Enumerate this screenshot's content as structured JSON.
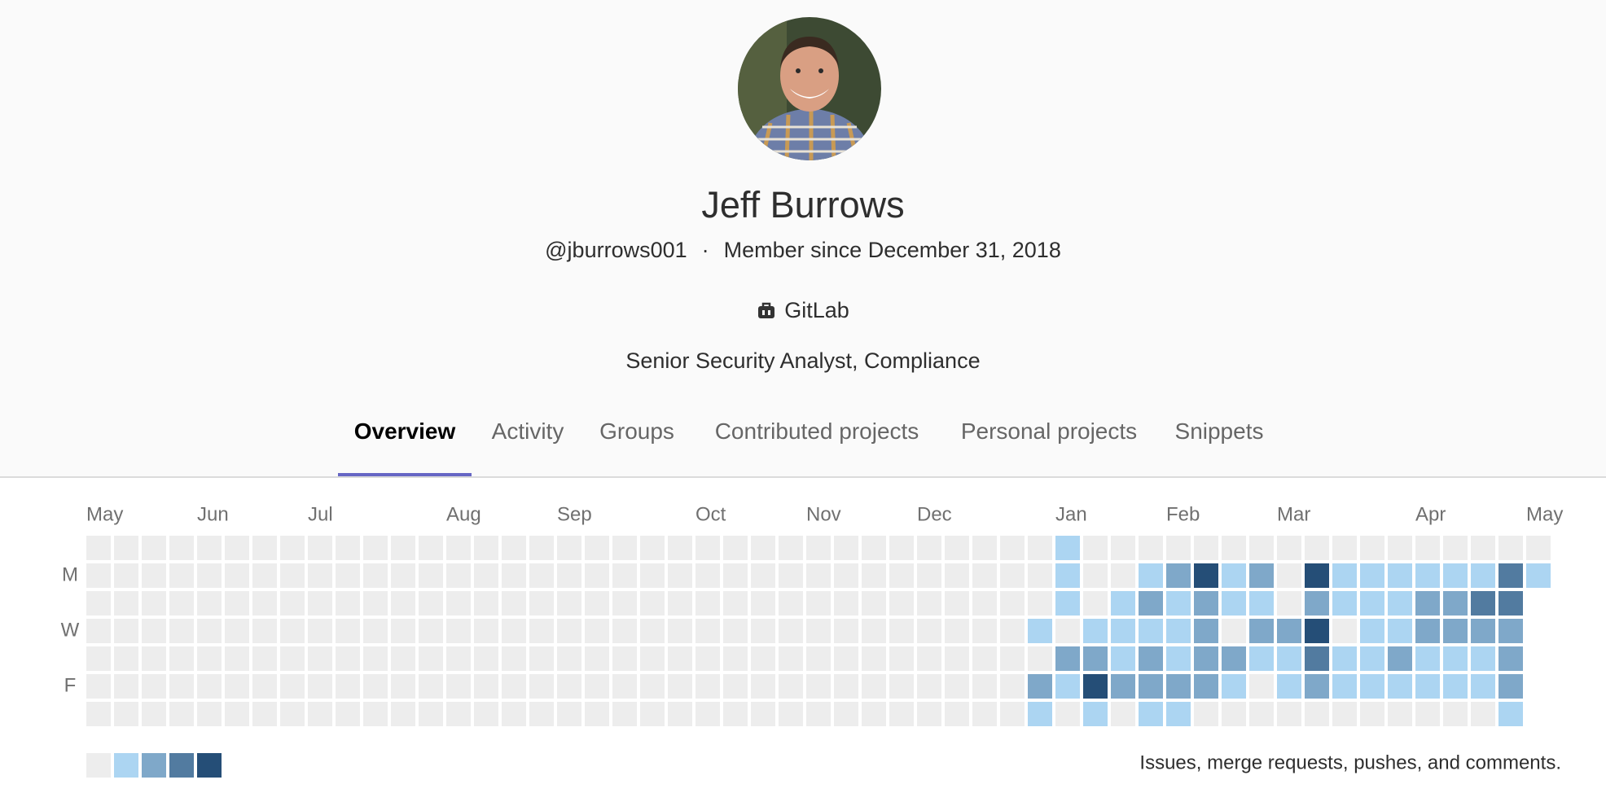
{
  "profile": {
    "name": "Jeff Burrows",
    "handle": "@jburrows001",
    "separator": "·",
    "member_since": "Member since December 31, 2018",
    "organization": "GitLab",
    "job_title": "Senior Security Analyst, Compliance"
  },
  "tabs": [
    "Overview",
    "Activity",
    "Groups",
    "Contributed projects",
    "Personal projects",
    "Snippets"
  ],
  "active_tab": 0,
  "calendar": {
    "week_labels": [
      "May",
      null,
      null,
      null,
      "Jun",
      null,
      null,
      null,
      "Jul",
      null,
      null,
      null,
      null,
      "Aug",
      null,
      null,
      null,
      "Sep",
      null,
      null,
      null,
      null,
      "Oct",
      null,
      null,
      null,
      "Nov",
      null,
      null,
      null,
      "Dec",
      null,
      null,
      null,
      null,
      "Jan",
      null,
      null,
      null,
      "Feb",
      null,
      null,
      null,
      "Mar",
      null,
      null,
      null,
      null,
      "Apr",
      null,
      null,
      null,
      "May"
    ],
    "day_labels": [
      null,
      "M",
      null,
      "W",
      null,
      "F",
      null
    ],
    "colors": [
      "#ededed",
      "#acd5f2",
      "#7fa8c9",
      "#527ba0",
      "#254e77"
    ],
    "weeks": [
      [
        0,
        0,
        0,
        0,
        0,
        0,
        0
      ],
      [
        0,
        0,
        0,
        0,
        0,
        0,
        0
      ],
      [
        0,
        0,
        0,
        0,
        0,
        0,
        0
      ],
      [
        0,
        0,
        0,
        0,
        0,
        0,
        0
      ],
      [
        0,
        0,
        0,
        0,
        0,
        0,
        0
      ],
      [
        0,
        0,
        0,
        0,
        0,
        0,
        0
      ],
      [
        0,
        0,
        0,
        0,
        0,
        0,
        0
      ],
      [
        0,
        0,
        0,
        0,
        0,
        0,
        0
      ],
      [
        0,
        0,
        0,
        0,
        0,
        0,
        0
      ],
      [
        0,
        0,
        0,
        0,
        0,
        0,
        0
      ],
      [
        0,
        0,
        0,
        0,
        0,
        0,
        0
      ],
      [
        0,
        0,
        0,
        0,
        0,
        0,
        0
      ],
      [
        0,
        0,
        0,
        0,
        0,
        0,
        0
      ],
      [
        0,
        0,
        0,
        0,
        0,
        0,
        0
      ],
      [
        0,
        0,
        0,
        0,
        0,
        0,
        0
      ],
      [
        0,
        0,
        0,
        0,
        0,
        0,
        0
      ],
      [
        0,
        0,
        0,
        0,
        0,
        0,
        0
      ],
      [
        0,
        0,
        0,
        0,
        0,
        0,
        0
      ],
      [
        0,
        0,
        0,
        0,
        0,
        0,
        0
      ],
      [
        0,
        0,
        0,
        0,
        0,
        0,
        0
      ],
      [
        0,
        0,
        0,
        0,
        0,
        0,
        0
      ],
      [
        0,
        0,
        0,
        0,
        0,
        0,
        0
      ],
      [
        0,
        0,
        0,
        0,
        0,
        0,
        0
      ],
      [
        0,
        0,
        0,
        0,
        0,
        0,
        0
      ],
      [
        0,
        0,
        0,
        0,
        0,
        0,
        0
      ],
      [
        0,
        0,
        0,
        0,
        0,
        0,
        0
      ],
      [
        0,
        0,
        0,
        0,
        0,
        0,
        0
      ],
      [
        0,
        0,
        0,
        0,
        0,
        0,
        0
      ],
      [
        0,
        0,
        0,
        0,
        0,
        0,
        0
      ],
      [
        0,
        0,
        0,
        0,
        0,
        0,
        0
      ],
      [
        0,
        0,
        0,
        0,
        0,
        0,
        0
      ],
      [
        0,
        0,
        0,
        0,
        0,
        0,
        0
      ],
      [
        0,
        0,
        0,
        0,
        0,
        0,
        0
      ],
      [
        0,
        0,
        0,
        0,
        0,
        0,
        0
      ],
      [
        0,
        0,
        0,
        1,
        0,
        2,
        1
      ],
      [
        1,
        1,
        1,
        0,
        2,
        1,
        0
      ],
      [
        0,
        0,
        0,
        1,
        2,
        4,
        1
      ],
      [
        0,
        0,
        1,
        1,
        1,
        2,
        0
      ],
      [
        0,
        1,
        2,
        1,
        2,
        2,
        1
      ],
      [
        0,
        2,
        1,
        1,
        1,
        2,
        1
      ],
      [
        0,
        4,
        2,
        2,
        2,
        2,
        0
      ],
      [
        0,
        1,
        1,
        0,
        2,
        1,
        0
      ],
      [
        0,
        2,
        1,
        2,
        1,
        0,
        0
      ],
      [
        0,
        0,
        0,
        2,
        1,
        1,
        0
      ],
      [
        0,
        4,
        2,
        4,
        3,
        2,
        0
      ],
      [
        0,
        1,
        1,
        0,
        1,
        1,
        0
      ],
      [
        0,
        1,
        1,
        1,
        1,
        1,
        0
      ],
      [
        0,
        1,
        1,
        1,
        2,
        1,
        0
      ],
      [
        0,
        1,
        2,
        2,
        1,
        1,
        0
      ],
      [
        0,
        1,
        2,
        2,
        1,
        1,
        0
      ],
      [
        0,
        1,
        3,
        2,
        1,
        1,
        0
      ],
      [
        0,
        3,
        3,
        2,
        2,
        2,
        1
      ],
      [
        0,
        1,
        null,
        null,
        null,
        null,
        null
      ]
    ],
    "legend_levels": [
      0,
      1,
      2,
      3,
      4
    ],
    "caption": "Issues, merge requests, pushes, and comments."
  }
}
